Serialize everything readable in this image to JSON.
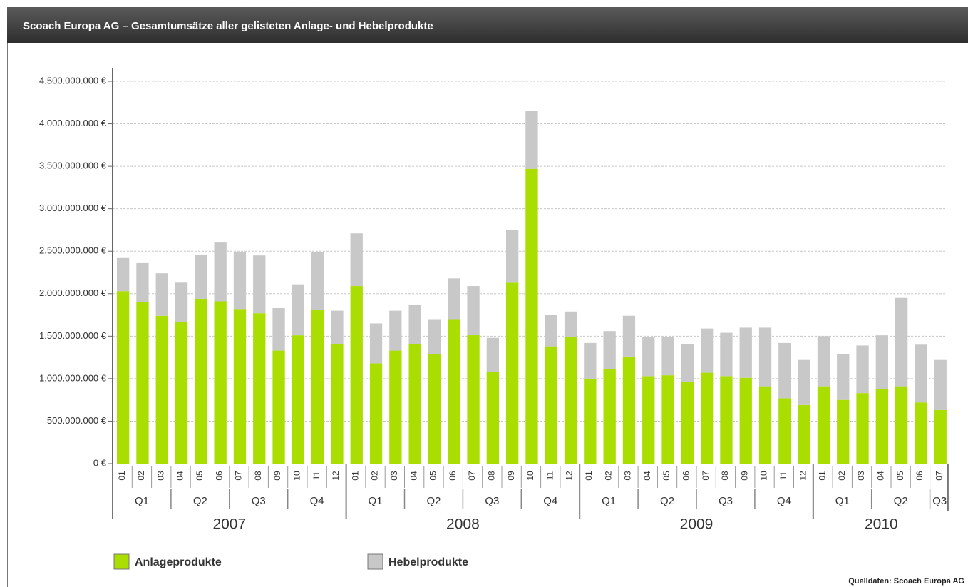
{
  "chart_data": {
    "type": "stacked_bar",
    "title": "Scoach Europa AG – Gesamtumsätze aller gelisteten Anlage- und Hebelprodukte",
    "source": "Quelldaten: Scoach Europa AG",
    "categories": [
      "01",
      "02",
      "03",
      "04",
      "05",
      "06",
      "07",
      "08",
      "09",
      "10",
      "11",
      "12",
      "01",
      "02",
      "03",
      "04",
      "05",
      "06",
      "07",
      "08",
      "09",
      "10",
      "11",
      "12",
      "01",
      "02",
      "03",
      "04",
      "05",
      "06",
      "07",
      "08",
      "09",
      "10",
      "11",
      "12",
      "01",
      "02",
      "03",
      "04",
      "05",
      "06",
      "07"
    ],
    "years": [
      {
        "label": "2007",
        "quarters": [
          "Q1",
          "Q2",
          "Q3",
          "Q4"
        ]
      },
      {
        "label": "2008",
        "quarters": [
          "Q1",
          "Q2",
          "Q3",
          "Q4"
        ]
      },
      {
        "label": "2009",
        "quarters": [
          "Q1",
          "Q2",
          "Q3",
          "Q4"
        ]
      },
      {
        "label": "2010",
        "quarters": [
          "Q1",
          "Q2",
          "Q3"
        ]
      }
    ],
    "series": [
      {
        "name": "Anlageprodukte",
        "color": "#aadd00",
        "values": [
          2030000000,
          1900000000,
          1740000000,
          1670000000,
          1940000000,
          1910000000,
          1820000000,
          1770000000,
          1330000000,
          1510000000,
          1810000000,
          1410000000,
          2090000000,
          1180000000,
          1330000000,
          1410000000,
          1290000000,
          1700000000,
          1520000000,
          1080000000,
          2130000000,
          3470000000,
          1380000000,
          1490000000,
          1000000000,
          1110000000,
          1260000000,
          1030000000,
          1040000000,
          960000000,
          1070000000,
          1030000000,
          1010000000,
          910000000,
          770000000,
          690000000,
          910000000,
          750000000,
          830000000,
          880000000,
          910000000,
          720000000,
          630000000
        ]
      },
      {
        "name": "Hebelprodukte",
        "color": "#c8c8c8",
        "values": [
          390000000,
          460000000,
          500000000,
          460000000,
          520000000,
          700000000,
          670000000,
          680000000,
          500000000,
          600000000,
          680000000,
          390000000,
          620000000,
          470000000,
          470000000,
          460000000,
          410000000,
          480000000,
          570000000,
          400000000,
          620000000,
          680000000,
          370000000,
          300000000,
          420000000,
          450000000,
          480000000,
          460000000,
          450000000,
          450000000,
          520000000,
          510000000,
          590000000,
          690000000,
          650000000,
          530000000,
          590000000,
          540000000,
          560000000,
          630000000,
          1040000000,
          680000000,
          590000000
        ]
      }
    ],
    "ylim": [
      0,
      4500000000
    ],
    "yticks": [
      {
        "value": 0,
        "label": "0 €"
      },
      {
        "value": 500000000,
        "label": "500.000.000 €"
      },
      {
        "value": 1000000000,
        "label": "1.000.000.000 €"
      },
      {
        "value": 1500000000,
        "label": "1.500.000.000 €"
      },
      {
        "value": 2000000000,
        "label": "2.000.000.000 €"
      },
      {
        "value": 2500000000,
        "label": "2.500.000.000 €"
      },
      {
        "value": 3000000000,
        "label": "3.000.000.000 €"
      },
      {
        "value": 3500000000,
        "label": "3.500.000.000 €"
      },
      {
        "value": 4000000000,
        "label": "4.000.000.000 €"
      },
      {
        "value": 4500000000,
        "label": "4.500.000.000 €"
      }
    ],
    "grid": true
  }
}
